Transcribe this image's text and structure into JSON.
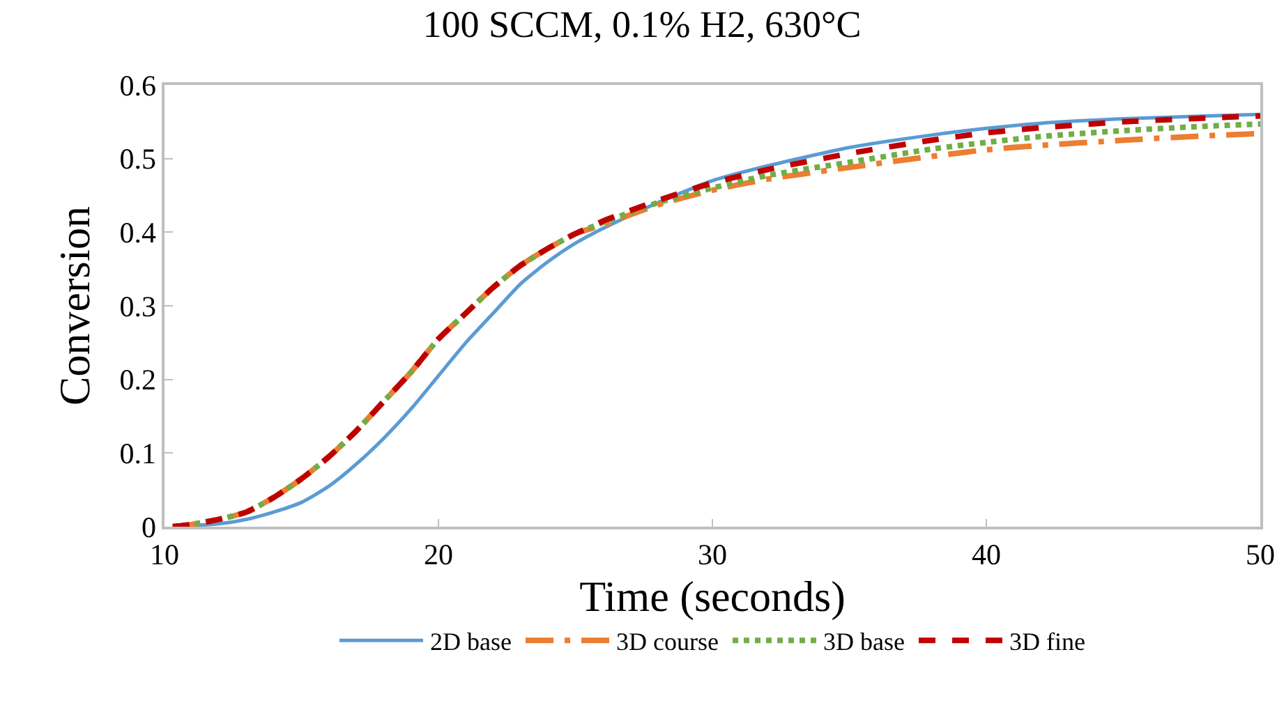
{
  "chart_data": {
    "type": "line",
    "title": "100 SCCM, 0.1% H2, 630°C",
    "xlabel": "Time (seconds)",
    "ylabel": "Conversion",
    "x": [
      10.3,
      11,
      12,
      13,
      14,
      15,
      16,
      17,
      18,
      19,
      20,
      21,
      22,
      23,
      24,
      25,
      26,
      28,
      30,
      32,
      35,
      38,
      40,
      42,
      45,
      48,
      50
    ],
    "series": [
      {
        "name": "2D base",
        "color": "#5b9bd5",
        "line_style": "solid",
        "x": [
          10.3,
          12,
          13,
          14,
          15,
          16,
          17,
          18,
          19,
          20,
          21,
          22,
          23,
          24,
          25,
          26,
          28,
          30,
          32,
          35,
          38,
          40,
          42,
          45,
          48,
          50
        ],
        "values": [
          0,
          0.004,
          0.01,
          0.02,
          0.033,
          0.055,
          0.085,
          0.12,
          0.16,
          0.205,
          0.25,
          0.29,
          0.33,
          0.36,
          0.385,
          0.405,
          0.44,
          0.47,
          0.49,
          0.515,
          0.532,
          0.541,
          0.548,
          0.554,
          0.558,
          0.56
        ]
      },
      {
        "name": "3D course",
        "color": "#ed7d31",
        "line_style": "dashdot",
        "values": [
          0,
          0.003,
          0.01,
          0.02,
          0.04,
          0.065,
          0.095,
          0.13,
          0.17,
          0.21,
          0.255,
          0.29,
          0.325,
          0.355,
          0.378,
          0.398,
          0.41,
          0.437,
          0.457,
          0.472,
          0.488,
          0.503,
          0.512,
          0.518,
          0.525,
          0.531,
          0.534
        ]
      },
      {
        "name": "3D base",
        "color": "#70ad47",
        "line_style": "dotted",
        "values": [
          0,
          0.003,
          0.01,
          0.02,
          0.04,
          0.065,
          0.095,
          0.13,
          0.17,
          0.21,
          0.255,
          0.29,
          0.325,
          0.355,
          0.378,
          0.398,
          0.413,
          0.44,
          0.46,
          0.477,
          0.495,
          0.513,
          0.522,
          0.53,
          0.538,
          0.544,
          0.547
        ]
      },
      {
        "name": "3D fine",
        "color": "#c00000",
        "line_style": "dashed",
        "values": [
          0,
          0.003,
          0.01,
          0.02,
          0.04,
          0.065,
          0.095,
          0.13,
          0.17,
          0.21,
          0.255,
          0.29,
          0.325,
          0.355,
          0.378,
          0.398,
          0.415,
          0.443,
          0.467,
          0.485,
          0.507,
          0.525,
          0.535,
          0.542,
          0.55,
          0.555,
          0.558
        ]
      }
    ],
    "xlim": [
      10,
      50
    ],
    "xticks": [
      10,
      20,
      30,
      40,
      50
    ],
    "ylim": [
      0,
      0.6
    ],
    "yticks": [
      0,
      0.1,
      0.2,
      0.3,
      0.4,
      0.5,
      0.6
    ],
    "grid": false,
    "legend": "bottom",
    "marker": "none"
  }
}
